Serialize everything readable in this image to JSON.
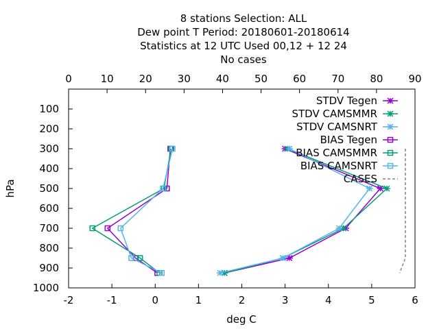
{
  "chart_data": {
    "type": "line",
    "title_lines": [
      "8 stations Selection: ALL",
      "Dew point T  Period: 20180601-20180614",
      "Statistics at 12 UTC  Used  00,12  + 12 24",
      "No cases"
    ],
    "xlabel": "deg C",
    "ylabel": "hPa",
    "xlim": [
      -2,
      6
    ],
    "x_ticks": [
      "-2",
      "-1",
      "0",
      "1",
      "2",
      "3",
      "4",
      "5",
      "6"
    ],
    "x2lim": [
      0,
      90
    ],
    "x2_ticks": [
      "0",
      "10",
      "20",
      "30",
      "40",
      "50",
      "60",
      "70",
      "80",
      "90"
    ],
    "ylim": [
      1000,
      0
    ],
    "y_ticks": [
      "100",
      "200",
      "300",
      "400",
      "500",
      "600",
      "700",
      "800",
      "900",
      "1000"
    ],
    "legend_position": "top-right",
    "series": [
      {
        "name": "STDV Tegen",
        "color": "#9400d3",
        "marker": "star",
        "x": [
          3.0,
          5.2,
          4.4,
          3.1,
          1.6
        ],
        "y": [
          300,
          500,
          700,
          850,
          925
        ]
      },
      {
        "name": "STDV CAMSMMR",
        "color": "#009e73",
        "marker": "star",
        "x": [
          3.05,
          5.35,
          4.35,
          2.95,
          1.6
        ],
        "y": [
          300,
          500,
          700,
          850,
          925
        ]
      },
      {
        "name": "STDV CAMSNRT",
        "color": "#56b4e9",
        "marker": "star",
        "x": [
          3.1,
          4.95,
          4.25,
          2.95,
          1.5
        ],
        "y": [
          300,
          500,
          700,
          850,
          925
        ]
      },
      {
        "name": "BIAS Tegen",
        "color": "#9400d3",
        "marker": "square",
        "x": [
          0.35,
          0.27,
          -1.1,
          -0.45,
          0.05
        ],
        "y": [
          300,
          500,
          700,
          850,
          925
        ]
      },
      {
        "name": "BIAS CAMSMMR",
        "color": "#009e73",
        "marker": "square",
        "x": [
          0.37,
          0.2,
          -1.45,
          -0.35,
          0.1
        ],
        "y": [
          300,
          500,
          700,
          850,
          925
        ]
      },
      {
        "name": "BIAS CAMSNRT",
        "color": "#56b4e9",
        "marker": "square",
        "x": [
          0.4,
          0.18,
          -0.8,
          -0.55,
          0.15
        ],
        "y": [
          300,
          500,
          700,
          850,
          925
        ]
      },
      {
        "name": "CASES",
        "color": "#808080",
        "marker": "none",
        "dashed": true,
        "axis": "x2",
        "x": [
          87.5,
          87.5,
          87.5,
          87.5,
          86
        ],
        "y": [
          300,
          500,
          700,
          850,
          925
        ]
      }
    ]
  }
}
